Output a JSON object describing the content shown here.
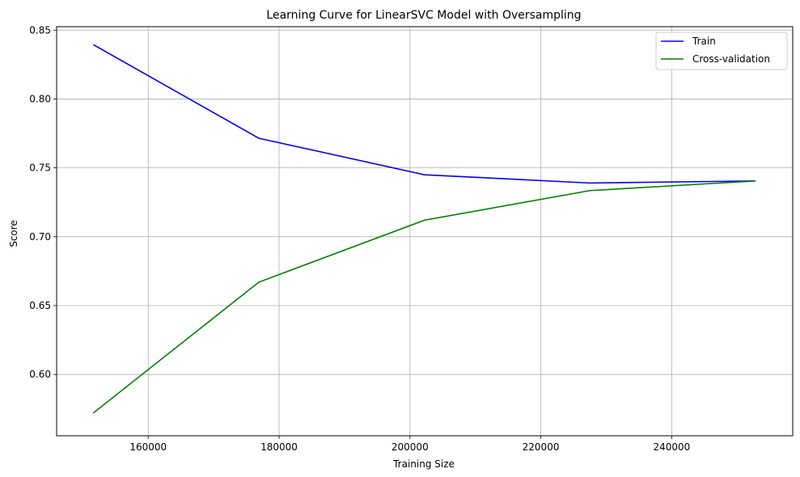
{
  "chart_data": {
    "type": "line",
    "title": "Learning Curve for LinearSVC Model with Oversampling",
    "xlabel": "Training Size",
    "ylabel": "Score",
    "xlim": [
      146000,
      258500
    ],
    "ylim": [
      0.5555,
      0.8525
    ],
    "xticks": [
      160000,
      180000,
      200000,
      220000,
      240000
    ],
    "yticks": [
      0.6,
      0.65,
      0.7,
      0.75,
      0.8,
      0.85
    ],
    "grid": true,
    "legend_position": "top-right",
    "x": [
      151600,
      176900,
      202200,
      227500,
      252800
    ],
    "series": [
      {
        "name": "Train",
        "color": "#0000ff",
        "values": [
          0.8395,
          0.7715,
          0.745,
          0.739,
          0.7405
        ]
      },
      {
        "name": "Cross-validation",
        "color": "#008000",
        "values": [
          0.572,
          0.667,
          0.712,
          0.7335,
          0.7405
        ]
      }
    ]
  }
}
